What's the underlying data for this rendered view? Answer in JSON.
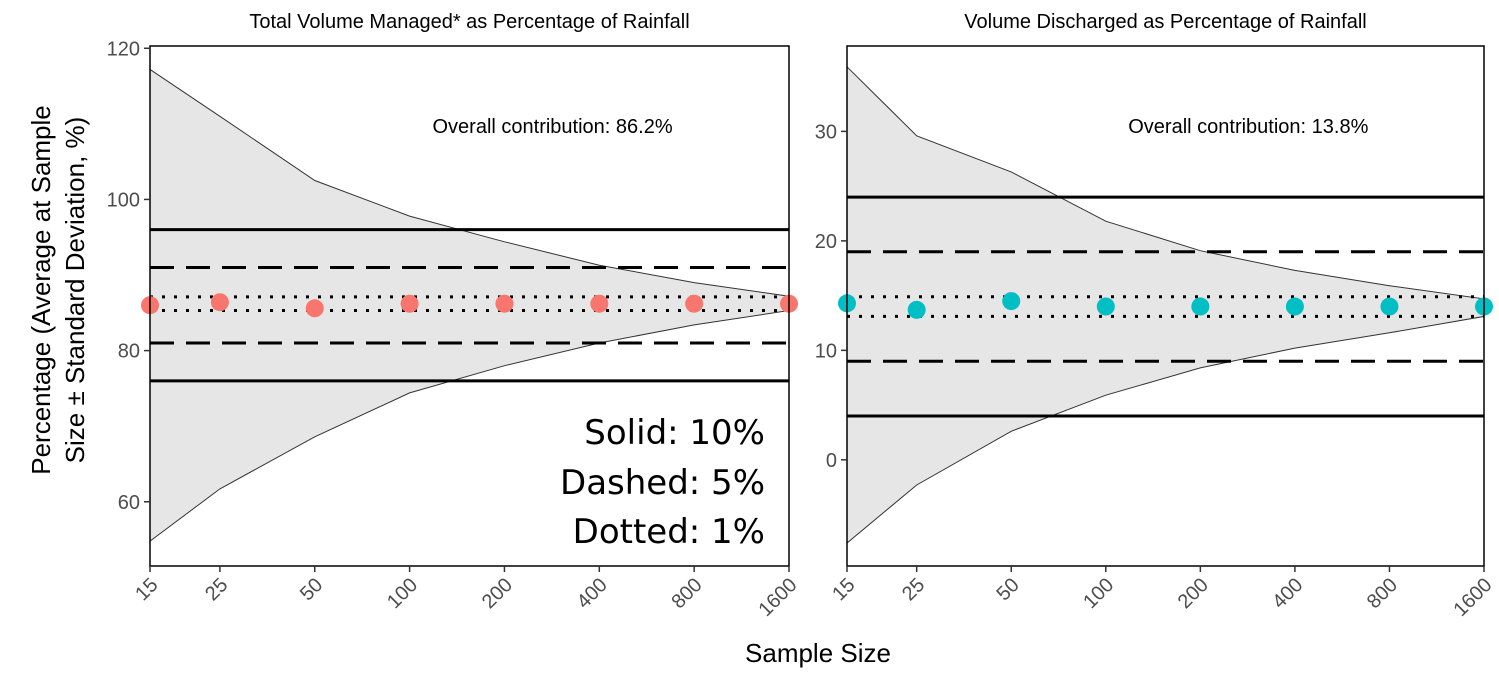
{
  "figure": {
    "ylabel_line1": "Percentage (Average at Sample",
    "ylabel_line2": "Size ± Standard Deviation, %)",
    "xlabel": "Sample Size",
    "legend": [
      "Solid: 10%",
      "Dashed: 5%",
      "Dotted: 1%"
    ]
  },
  "chart_data": [
    {
      "type": "scatter",
      "title": "Total Volume Managed* as Percentage of Rainfall",
      "annotation": "Overall contribution: 86.2%",
      "x_scale": "log",
      "x": [
        15,
        25,
        50,
        100,
        200,
        400,
        800,
        1600
      ],
      "x_tick_labels": [
        "15",
        "25",
        "50",
        "100",
        "200",
        "400",
        "800",
        "1600"
      ],
      "y_ticks": [
        60,
        80,
        100,
        120
      ],
      "ylim": [
        51.5,
        120.3
      ],
      "mean": [
        86.0,
        86.4,
        85.6,
        86.2,
        86.2,
        86.2,
        86.2,
        86.2
      ],
      "band_upper": [
        117.2,
        111.0,
        102.5,
        97.8,
        94.4,
        91.3,
        89.0,
        87.2
      ],
      "band_lower": [
        54.8,
        61.7,
        68.6,
        74.4,
        78.0,
        81.0,
        83.4,
        85.3
      ],
      "reference_lines": {
        "solid": [
          76,
          96
        ],
        "dashed": [
          81,
          91
        ],
        "dotted": [
          85.3,
          87.1
        ]
      },
      "point_color": "#f8766d",
      "grid": false
    },
    {
      "type": "scatter",
      "title": "Volume Discharged as Percentage of Rainfall",
      "annotation": "Overall contribution: 13.8%",
      "x_scale": "log",
      "x": [
        15,
        25,
        50,
        100,
        200,
        400,
        800,
        1600
      ],
      "x_tick_labels": [
        "15",
        "25",
        "50",
        "100",
        "200",
        "400",
        "800",
        "1600"
      ],
      "y_ticks": [
        0,
        10,
        20,
        30
      ],
      "ylim": [
        -9.7,
        37.8
      ],
      "mean": [
        14.3,
        13.7,
        14.5,
        14.0,
        14.0,
        14.0,
        14.0,
        14.0
      ],
      "band_upper": [
        35.9,
        29.6,
        26.3,
        21.8,
        19.1,
        17.3,
        15.9,
        14.7
      ],
      "band_lower": [
        -7.6,
        -2.3,
        2.6,
        5.9,
        8.4,
        10.2,
        11.6,
        13.1
      ],
      "reference_lines": {
        "solid": [
          4,
          24
        ],
        "dashed": [
          9,
          19
        ],
        "dotted": [
          13.1,
          14.9
        ]
      },
      "point_color": "#00bfc4",
      "grid": false
    }
  ]
}
